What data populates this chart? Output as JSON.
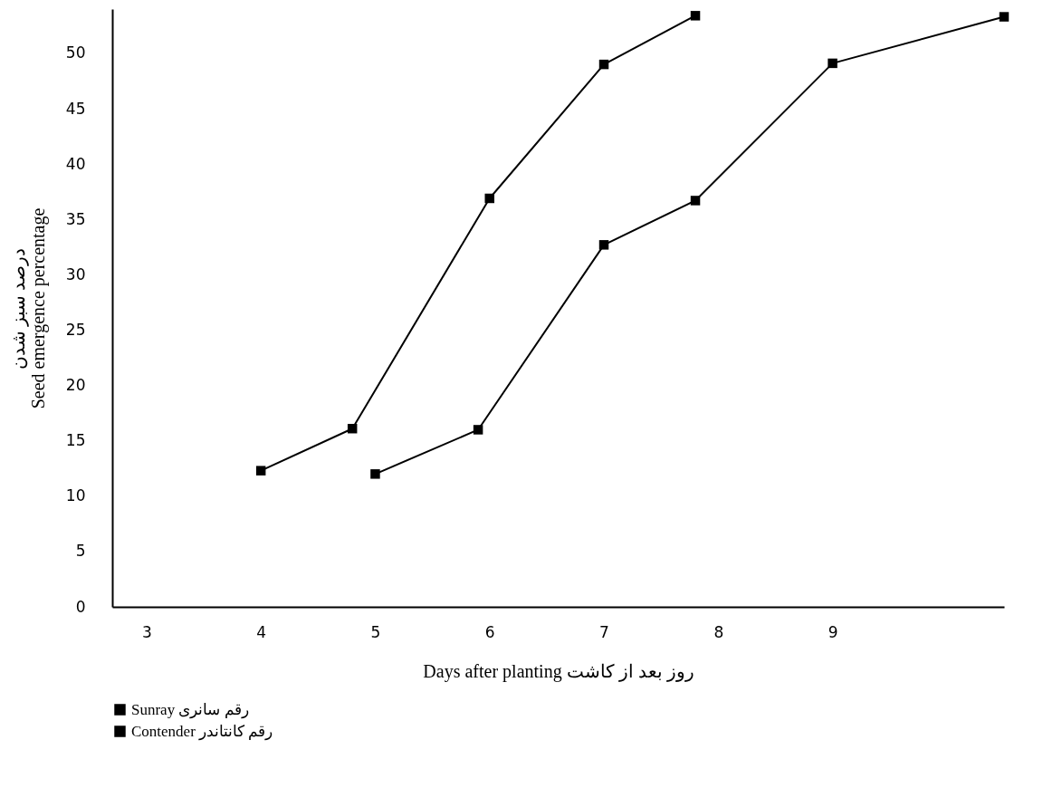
{
  "chart_data": {
    "type": "line",
    "xlabel": "Days after planting        روز بعد از کاشت",
    "ylabel": "درصد سبز شدن\nSeed emergence percentage",
    "xlim": [
      2.7,
      10.5
    ],
    "xticks": [
      3,
      4,
      5,
      6,
      7,
      8,
      9
    ],
    "ylim": [
      0,
      54
    ],
    "yticks": [
      0,
      5,
      10,
      15,
      20,
      25,
      30,
      35,
      40,
      45,
      50
    ],
    "grid": false,
    "legend": "bottom left",
    "marker": "square",
    "series": [
      {
        "name": "Sunray رقم سانری",
        "color": "#000000",
        "x": [
          4.0,
          4.8,
          6.0,
          7.0,
          7.8
        ],
        "values": [
          12.3,
          16.1,
          36.9,
          49.0,
          53.4
        ]
      },
      {
        "name": "Contender رقم کانتاندر",
        "color": "#000000",
        "x": [
          5.0,
          5.9,
          7.0,
          7.8,
          9.0,
          10.5
        ],
        "values": [
          12.0,
          16.0,
          32.7,
          36.7,
          49.1,
          53.3
        ]
      }
    ]
  }
}
